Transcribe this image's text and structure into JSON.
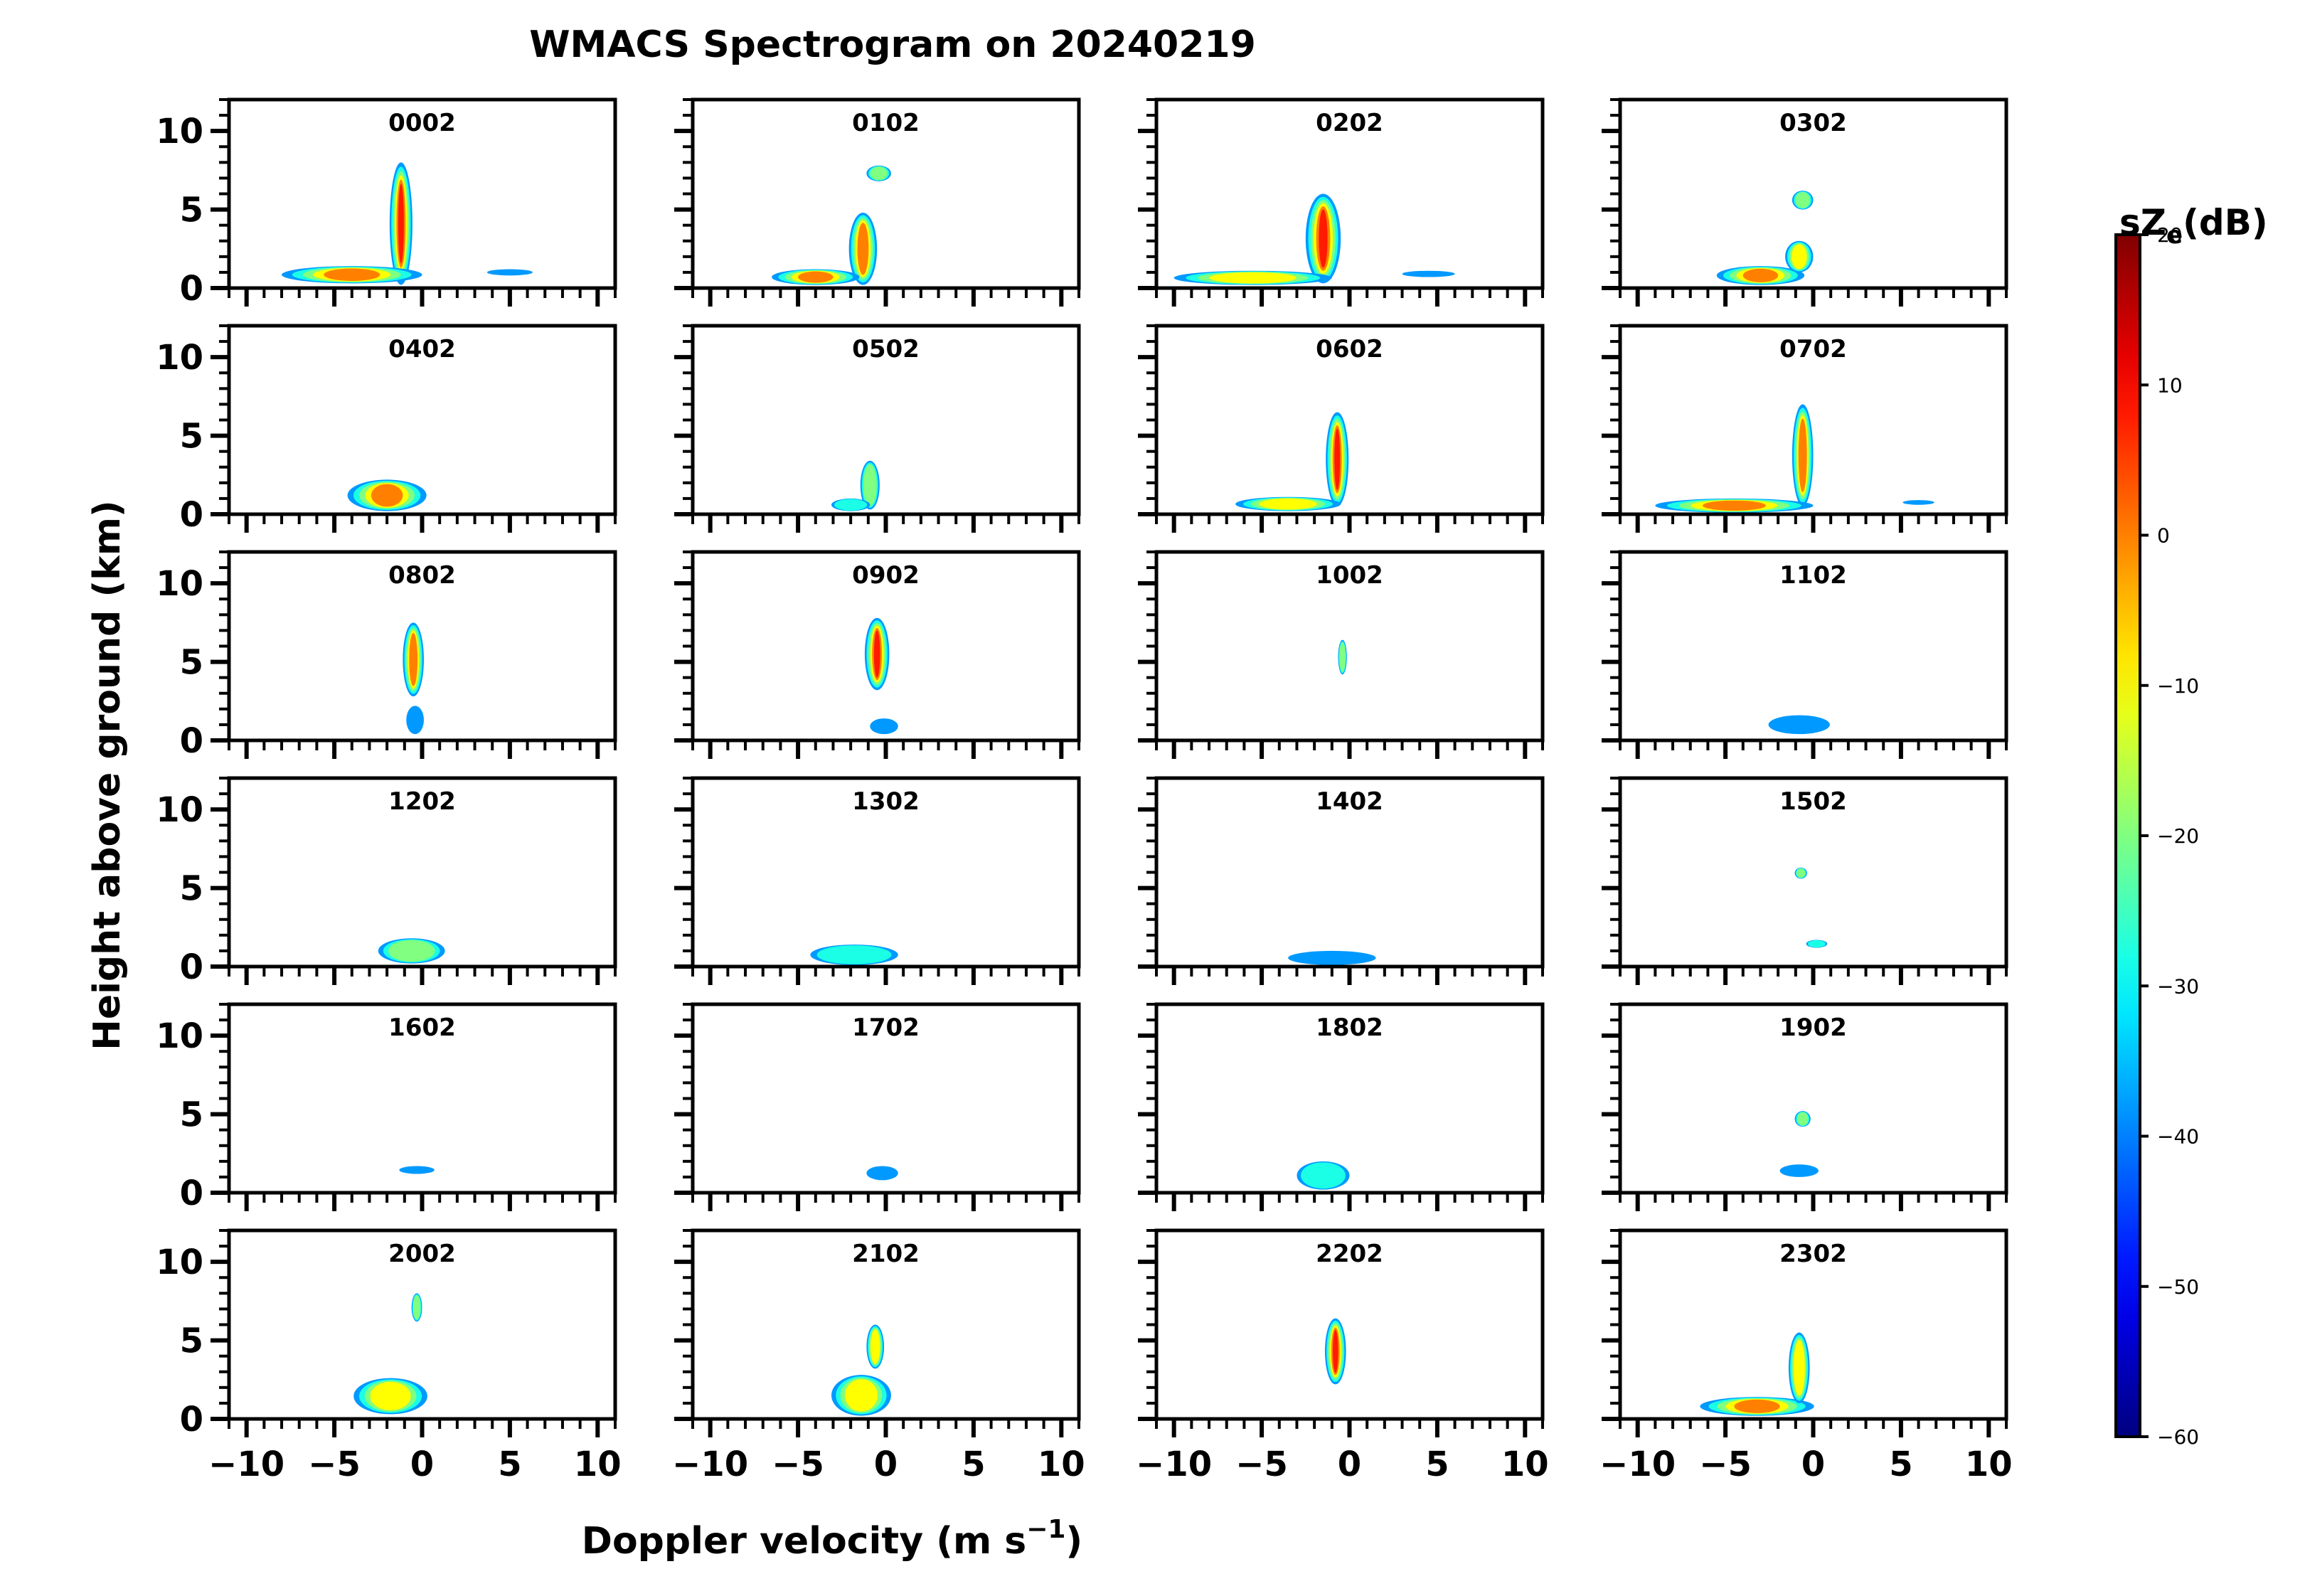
{
  "figure": {
    "title": "WMACS Spectrogram on 20240219",
    "xlabel_main": "Doppler velocity (m s",
    "xlabel_sup": "−1",
    "xlabel_close": ")",
    "ylabel": "Height above ground (km)"
  },
  "chart_data": {
    "type": "heatmap",
    "title": "WMACS Spectrogram on 20240219",
    "xlabel": "Doppler velocity (m s−1)",
    "ylabel": "Height above ground (km)",
    "xlim": [
      -11,
      11
    ],
    "ylim": [
      0,
      12
    ],
    "x_ticks": [
      -10,
      -5,
      0,
      5,
      10
    ],
    "x_tick_labels": [
      "−10",
      "−5",
      "0",
      "5",
      "10"
    ],
    "y_ticks": [
      0,
      5,
      10
    ],
    "y_tick_labels": [
      "0",
      "5",
      "10"
    ],
    "grid": false,
    "colorbar": {
      "label": "sZ",
      "label_sub": "e",
      "label_unit": "(dB)",
      "range": [
        -60,
        20
      ],
      "ticks": [
        20,
        10,
        0,
        -10,
        -20,
        -30,
        -40,
        -50,
        -60
      ],
      "tick_labels": [
        "20",
        "10",
        "0",
        "−10",
        "−20",
        "−30",
        "−40",
        "−50",
        "−60"
      ],
      "colormap": "jet"
    },
    "panels": [
      {
        "time": "0002",
        "features": [
          {
            "x": -1.2,
            "y0": 0.2,
            "y1": 8.0,
            "w": 1.3,
            "peak": 8
          },
          {
            "x": -4.0,
            "y0": 0.3,
            "y1": 1.4,
            "w": 8.0,
            "peak": 2
          },
          {
            "x": 5.0,
            "y0": 0.8,
            "y1": 1.2,
            "w": 2.6,
            "peak": -33
          }
        ]
      },
      {
        "time": "0102",
        "features": [
          {
            "x": -1.3,
            "y0": 0.2,
            "y1": 4.8,
            "w": 1.6,
            "peak": 6
          },
          {
            "x": -4.0,
            "y0": 0.2,
            "y1": 1.2,
            "w": 5.0,
            "peak": 0
          },
          {
            "x": -0.4,
            "y0": 6.8,
            "y1": 7.8,
            "w": 1.4,
            "peak": -18
          }
        ]
      },
      {
        "time": "0202",
        "features": [
          {
            "x": -1.5,
            "y0": 0.3,
            "y1": 6.0,
            "w": 2.0,
            "peak": 10
          },
          {
            "x": -5.5,
            "y0": 0.2,
            "y1": 1.1,
            "w": 9.0,
            "peak": -2
          },
          {
            "x": 4.5,
            "y0": 0.7,
            "y1": 1.1,
            "w": 3.0,
            "peak": -33
          }
        ]
      },
      {
        "time": "0302",
        "features": [
          {
            "x": -3.0,
            "y0": 0.2,
            "y1": 1.4,
            "w": 5.0,
            "peak": 2
          },
          {
            "x": -0.8,
            "y0": 1.0,
            "y1": 3.0,
            "w": 1.6,
            "peak": -8
          },
          {
            "x": -0.6,
            "y0": 5.0,
            "y1": 6.2,
            "w": 1.2,
            "peak": -18
          }
        ]
      },
      {
        "time": "0402",
        "features": [
          {
            "x": -2.0,
            "y0": 0.2,
            "y1": 2.2,
            "w": 4.5,
            "peak": 4
          }
        ]
      },
      {
        "time": "0502",
        "features": [
          {
            "x": -0.9,
            "y0": 0.3,
            "y1": 3.4,
            "w": 1.1,
            "peak": -14
          },
          {
            "x": -2.0,
            "y0": 0.2,
            "y1": 1.0,
            "w": 2.2,
            "peak": -28
          }
        ]
      },
      {
        "time": "0602",
        "features": [
          {
            "x": -0.7,
            "y0": 0.5,
            "y1": 6.5,
            "w": 1.3,
            "peak": 10
          },
          {
            "x": -3.5,
            "y0": 0.2,
            "y1": 1.1,
            "w": 6.0,
            "peak": -4
          }
        ]
      },
      {
        "time": "0702",
        "features": [
          {
            "x": -0.6,
            "y0": 0.5,
            "y1": 7.0,
            "w": 1.2,
            "peak": 6
          },
          {
            "x": -4.5,
            "y0": 0.1,
            "y1": 1.0,
            "w": 9.0,
            "peak": 0
          },
          {
            "x": 6.0,
            "y0": 0.6,
            "y1": 0.9,
            "w": 1.8,
            "peak": -33
          }
        ]
      },
      {
        "time": "0802",
        "features": [
          {
            "x": -0.5,
            "y0": 2.8,
            "y1": 7.5,
            "w": 1.2,
            "peak": 6
          },
          {
            "x": -0.4,
            "y0": 0.4,
            "y1": 2.2,
            "w": 1.0,
            "peak": -35
          }
        ]
      },
      {
        "time": "0902",
        "features": [
          {
            "x": -0.5,
            "y0": 3.2,
            "y1": 7.8,
            "w": 1.4,
            "peak": 8
          },
          {
            "x": -0.1,
            "y0": 0.4,
            "y1": 1.4,
            "w": 1.6,
            "peak": -33
          }
        ]
      },
      {
        "time": "1002",
        "features": [
          {
            "x": -0.4,
            "y0": 4.2,
            "y1": 6.4,
            "w": 0.5,
            "peak": -20
          }
        ]
      },
      {
        "time": "1102",
        "features": [
          {
            "x": -0.8,
            "y0": 0.4,
            "y1": 1.6,
            "w": 3.5,
            "peak": -34
          }
        ]
      },
      {
        "time": "1202",
        "features": [
          {
            "x": -0.6,
            "y0": 0.2,
            "y1": 1.8,
            "w": 3.8,
            "peak": -20
          }
        ]
      },
      {
        "time": "1302",
        "features": [
          {
            "x": -1.8,
            "y0": 0.1,
            "y1": 1.4,
            "w": 5.0,
            "peak": -24
          }
        ]
      },
      {
        "time": "1402",
        "features": [
          {
            "x": -1.0,
            "y0": 0.1,
            "y1": 1.0,
            "w": 5.0,
            "peak": -38
          }
        ]
      },
      {
        "time": "1502",
        "features": [
          {
            "x": -0.7,
            "y0": 5.6,
            "y1": 6.3,
            "w": 0.7,
            "peak": -16
          },
          {
            "x": 0.2,
            "y0": 1.2,
            "y1": 1.7,
            "w": 1.2,
            "peak": -26
          }
        ]
      },
      {
        "time": "1602",
        "features": [
          {
            "x": -0.3,
            "y0": 1.2,
            "y1": 1.7,
            "w": 2.0,
            "peak": -38
          }
        ]
      },
      {
        "time": "1702",
        "features": [
          {
            "x": -0.2,
            "y0": 0.8,
            "y1": 1.7,
            "w": 1.8,
            "peak": -36
          }
        ]
      },
      {
        "time": "1802",
        "features": [
          {
            "x": -1.5,
            "y0": 0.2,
            "y1": 2.0,
            "w": 3.0,
            "peak": -28
          }
        ]
      },
      {
        "time": "1902",
        "features": [
          {
            "x": -0.6,
            "y0": 4.2,
            "y1": 5.2,
            "w": 0.9,
            "peak": -14
          },
          {
            "x": -0.8,
            "y0": 1.0,
            "y1": 1.8,
            "w": 2.2,
            "peak": -38
          }
        ]
      },
      {
        "time": "2002",
        "features": [
          {
            "x": -1.8,
            "y0": 0.3,
            "y1": 2.6,
            "w": 4.2,
            "peak": -6
          },
          {
            "x": -0.3,
            "y0": 6.2,
            "y1": 8.0,
            "w": 0.6,
            "peak": -14
          }
        ]
      },
      {
        "time": "2102",
        "features": [
          {
            "x": -1.4,
            "y0": 0.2,
            "y1": 2.8,
            "w": 3.4,
            "peak": -4
          },
          {
            "x": -0.6,
            "y0": 3.2,
            "y1": 6.0,
            "w": 1.0,
            "peak": -8
          }
        ]
      },
      {
        "time": "2202",
        "features": [
          {
            "x": -0.8,
            "y0": 2.2,
            "y1": 6.4,
            "w": 1.2,
            "peak": 8
          }
        ]
      },
      {
        "time": "2302",
        "features": [
          {
            "x": -3.2,
            "y0": 0.2,
            "y1": 1.4,
            "w": 6.5,
            "peak": 2
          },
          {
            "x": -0.8,
            "y0": 1.0,
            "y1": 5.5,
            "w": 1.2,
            "peak": -10
          }
        ]
      }
    ]
  }
}
